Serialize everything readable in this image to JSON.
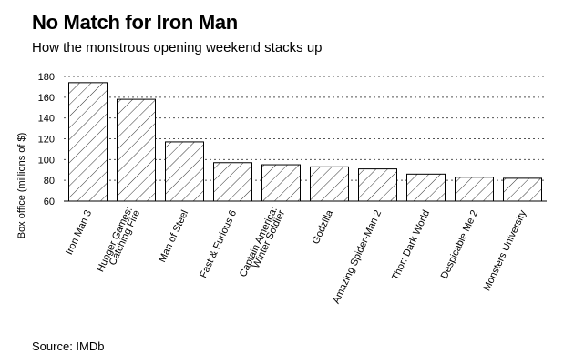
{
  "chart_data": {
    "type": "bar",
    "title": "No Match for Iron Man",
    "subtitle": "How the monstrous opening weekend stacks up",
    "ylabel": "Box office (millions of $)",
    "xlabel": "",
    "ylim": [
      60,
      180
    ],
    "yticks": [
      60,
      80,
      100,
      120,
      140,
      160,
      180
    ],
    "grid": true,
    "source": "Source: IMDb",
    "categories": [
      [
        "Iron Man 3"
      ],
      [
        "Hunger Games:",
        "Catching Fire"
      ],
      [
        "Man of Steel"
      ],
      [
        "Fast & Furious 6"
      ],
      [
        "Captain America:",
        "Winter Soldier"
      ],
      [
        "Godzilla"
      ],
      [
        "Amazing Spider-Man 2"
      ],
      [
        "Thor: Dark World"
      ],
      [
        "Despicable Me 2"
      ],
      [
        "Monsters University"
      ]
    ],
    "values": [
      174,
      158,
      117,
      97,
      95,
      93,
      91,
      86,
      83,
      82
    ],
    "colors": {
      "bar_fill": "#ffffff",
      "bar_stroke": "#000000",
      "hatch": "#000000",
      "grid": "#555555"
    }
  }
}
